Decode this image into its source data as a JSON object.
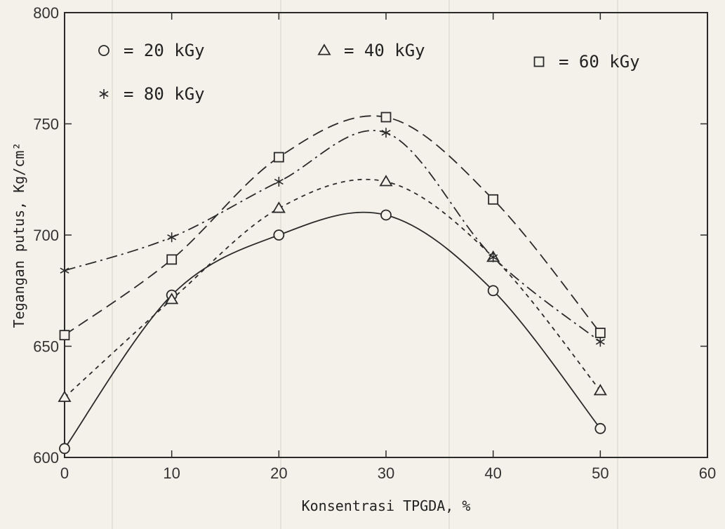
{
  "chart_data": {
    "type": "line",
    "x": [
      0,
      10,
      20,
      30,
      40,
      50
    ],
    "xlim": [
      0,
      60
    ],
    "ylim": [
      600,
      800
    ],
    "xticks": [
      0,
      10,
      20,
      30,
      40,
      50,
      60
    ],
    "yticks": [
      600,
      650,
      700,
      750,
      800
    ],
    "xtick_labels": [
      "0",
      "10",
      "20",
      "30",
      "40",
      "50",
      "60"
    ],
    "ytick_labels": [
      "600",
      "650",
      "700",
      "750",
      "800"
    ],
    "xlabel": "Konsentrasi TPGDA, %",
    "ylabel": "Tegangan putus, Kg/cm²",
    "grid": false,
    "legend_position": "top",
    "series": [
      {
        "name": "= 20 kGy",
        "marker": "circle",
        "dash": "solid",
        "values": [
          604,
          673,
          700,
          709,
          675,
          613
        ],
        "color": "#2a2a2a"
      },
      {
        "name": "= 40 kGy",
        "marker": "triangle",
        "dash": "short-dash",
        "values": [
          627,
          671,
          712,
          724,
          690,
          630
        ],
        "color": "#2a2a2a"
      },
      {
        "name": "= 60 kGy",
        "marker": "square",
        "dash": "long-dash",
        "values": [
          655,
          689,
          735,
          753,
          716,
          656
        ],
        "color": "#2a2a2a"
      },
      {
        "name": "= 80 kGy",
        "marker": "asterisk",
        "dash": "dash-dot",
        "values": [
          684,
          699,
          724,
          746,
          690,
          652
        ],
        "color": "#2a2a2a"
      }
    ]
  }
}
